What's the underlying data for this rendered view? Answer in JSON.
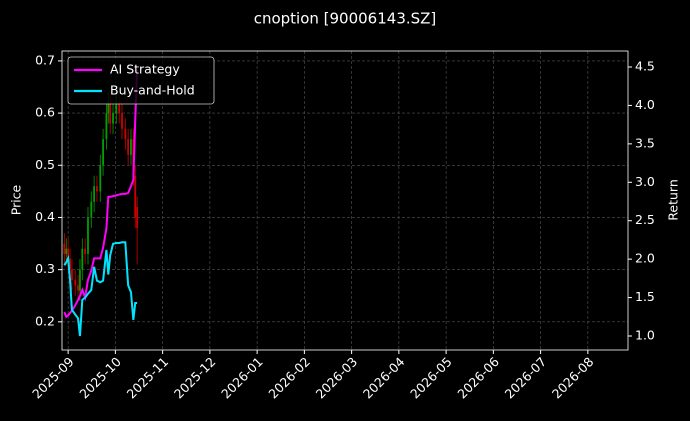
{
  "chart_data": {
    "type": "candlestick",
    "title": "cnoption [90006143.SZ]",
    "ylabel": "Price",
    "y2label": "Return",
    "x": [
      -0.08,
      -0.04,
      0,
      0.04,
      0.08,
      0.15,
      0.21,
      0.25,
      0.3,
      0.36,
      0.42,
      0.49,
      0.55,
      0.61,
      0.68,
      0.74,
      0.81,
      0.85,
      0.89,
      0.95,
      1.02,
      1.08,
      1.14,
      1.21,
      1.27,
      1.33,
      1.38,
      1.42,
      1.46
    ],
    "open": [
      0.35,
      0.33,
      0.34,
      0.32,
      0.3,
      0.28,
      0.27,
      0.26,
      0.3,
      0.34,
      0.33,
      0.4,
      0.43,
      0.46,
      0.45,
      0.5,
      0.55,
      0.6,
      0.62,
      0.58,
      0.6,
      0.62,
      0.6,
      0.57,
      0.55,
      0.52,
      0.55,
      0.48,
      0.42
    ],
    "high": [
      0.37,
      0.36,
      0.36,
      0.34,
      0.32,
      0.3,
      0.29,
      0.32,
      0.36,
      0.36,
      0.42,
      0.45,
      0.48,
      0.48,
      0.52,
      0.57,
      0.62,
      0.64,
      0.64,
      0.62,
      0.64,
      0.64,
      0.62,
      0.59,
      0.57,
      0.57,
      0.57,
      0.5,
      0.44
    ],
    "low": [
      0.31,
      0.31,
      0.3,
      0.28,
      0.26,
      0.25,
      0.24,
      0.24,
      0.28,
      0.31,
      0.31,
      0.38,
      0.41,
      0.43,
      0.43,
      0.48,
      0.53,
      0.58,
      0.56,
      0.56,
      0.58,
      0.58,
      0.55,
      0.53,
      0.5,
      0.5,
      0.46,
      0.38,
      0.31
    ],
    "close": [
      0.33,
      0.34,
      0.32,
      0.3,
      0.28,
      0.27,
      0.26,
      0.3,
      0.34,
      0.33,
      0.4,
      0.43,
      0.46,
      0.45,
      0.5,
      0.55,
      0.6,
      0.62,
      0.58,
      0.6,
      0.62,
      0.6,
      0.57,
      0.55,
      0.52,
      0.55,
      0.48,
      0.4,
      0.38
    ],
    "up_color": "#00a000",
    "down_color": "#d00000",
    "series": [
      {
        "name": "AI Strategy",
        "color": "#ff00ff",
        "axis": "y2",
        "values": [
          1.31,
          1.25,
          1.27,
          1.3,
          1.33,
          1.4,
          1.47,
          1.52,
          1.6,
          1.5,
          1.73,
          1.85,
          2.01,
          2.01,
          2.01,
          2.15,
          2.4,
          2.81,
          2.81,
          2.82,
          2.83,
          2.84,
          2.85,
          2.85,
          2.86,
          2.95,
          3.03,
          3.81,
          4.46
        ]
      },
      {
        "name": "Buy-and-Hold",
        "color": "#00e5ff",
        "axis": "y2",
        "values": [
          1.92,
          1.96,
          2.01,
          1.73,
          1.34,
          1.28,
          1.23,
          1.0,
          1.47,
          1.5,
          1.55,
          1.6,
          1.9,
          1.72,
          1.7,
          1.72,
          2.12,
          1.8,
          2.05,
          2.2,
          2.21,
          2.21,
          2.22,
          2.22,
          1.66,
          1.57,
          1.21,
          1.43,
          1.43
        ]
      }
    ],
    "xlim": [
      -0.13,
      11.85
    ],
    "xticks": [
      {
        "value": 0,
        "label": "2025-09"
      },
      {
        "value": 1,
        "label": "2025-10"
      },
      {
        "value": 2,
        "label": "2025-11"
      },
      {
        "value": 3,
        "label": "2025-12"
      },
      {
        "value": 4,
        "label": "2026-01"
      },
      {
        "value": 5,
        "label": "2026-02"
      },
      {
        "value": 6,
        "label": "2026-03"
      },
      {
        "value": 7,
        "label": "2026-04"
      },
      {
        "value": 8,
        "label": "2026-05"
      },
      {
        "value": 9,
        "label": "2026-06"
      },
      {
        "value": 10,
        "label": "2026-07"
      },
      {
        "value": 11,
        "label": "2026-08"
      }
    ],
    "ylim": [
      0.146,
      0.719
    ],
    "yticks": [
      0.2,
      0.3,
      0.4,
      0.5,
      0.6,
      0.7
    ],
    "y2lim": [
      0.818,
      4.708
    ],
    "y2ticks": [
      {
        "value": 1,
        "label": "1.0"
      },
      1.5,
      {
        "value": 2,
        "label": "2.0"
      },
      2.5,
      {
        "value": 3,
        "label": "3.0"
      },
      3.5,
      {
        "value": 4,
        "label": "4.0"
      },
      4.5
    ],
    "grid": true,
    "legend": "upper left"
  }
}
